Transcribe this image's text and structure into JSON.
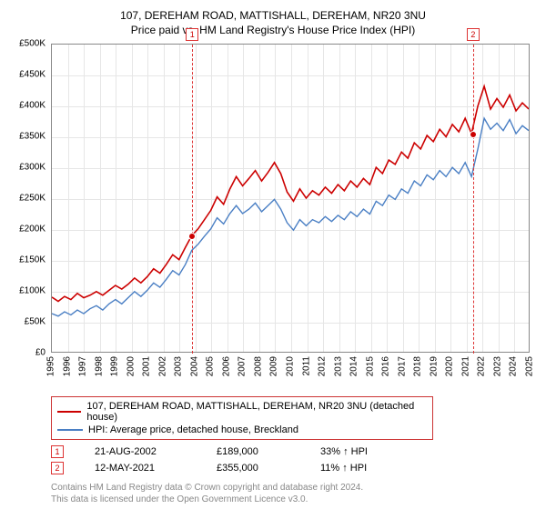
{
  "title": "107, DEREHAM ROAD, MATTISHALL, DEREHAM, NR20 3NU",
  "subtitle": "Price paid vs. HM Land Registry's House Price Index (HPI)",
  "chart": {
    "type": "line",
    "ylim": [
      0,
      500000
    ],
    "ytick_step": 50000,
    "y_ticks": [
      "£0",
      "£50K",
      "£100K",
      "£150K",
      "£200K",
      "£250K",
      "£300K",
      "£350K",
      "£400K",
      "£450K",
      "£500K"
    ],
    "x_ticks": [
      "1995",
      "1996",
      "1997",
      "1998",
      "1999",
      "2000",
      "2001",
      "2002",
      "2003",
      "2004",
      "2005",
      "2006",
      "2007",
      "2008",
      "2009",
      "2010",
      "2011",
      "2012",
      "2013",
      "2014",
      "2015",
      "2016",
      "2017",
      "2018",
      "2019",
      "2020",
      "2021",
      "2022",
      "2023",
      "2024",
      "2025"
    ],
    "background_color": "#ffffff",
    "grid_color": "#e6e6e6",
    "border_color": "#888888",
    "title_fontsize": 12,
    "axis_fontsize": 10,
    "series": [
      {
        "name": "107, DEREHAM ROAD, MATTISHALL, DEREHAM, NR20 3NU (detached house)",
        "color": "#cc0000",
        "line_width": 1.6,
        "y_values": [
          89,
          82,
          90,
          85,
          95,
          88,
          92,
          98,
          92,
          100,
          108,
          102,
          110,
          120,
          112,
          122,
          135,
          128,
          142,
          158,
          150,
          170,
          189,
          200,
          215,
          230,
          252,
          240,
          265,
          285,
          270,
          282,
          295,
          278,
          292,
          308,
          290,
          260,
          245,
          265,
          250,
          262,
          255,
          268,
          258,
          272,
          262,
          278,
          268,
          282,
          272,
          300,
          290,
          312,
          305,
          325,
          315,
          340,
          330,
          352,
          342,
          362,
          350,
          370,
          358,
          380,
          355,
          400,
          432,
          395,
          412,
          398,
          418,
          392,
          405,
          395
        ]
      },
      {
        "name": "HPI: Average price, detached house, Breckland",
        "color": "#4a7fc4",
        "line_width": 1.4,
        "y_values": [
          62,
          58,
          65,
          60,
          68,
          62,
          70,
          75,
          68,
          78,
          85,
          78,
          88,
          98,
          90,
          100,
          112,
          105,
          118,
          132,
          125,
          142,
          165,
          175,
          188,
          200,
          218,
          208,
          225,
          238,
          225,
          232,
          242,
          228,
          238,
          248,
          232,
          210,
          198,
          215,
          205,
          215,
          210,
          220,
          212,
          222,
          215,
          228,
          220,
          232,
          224,
          245,
          238,
          255,
          248,
          265,
          258,
          278,
          270,
          288,
          280,
          295,
          285,
          300,
          290,
          308,
          285,
          330,
          380,
          362,
          372,
          360,
          378,
          355,
          368,
          360
        ]
      }
    ],
    "markers": [
      {
        "id": "1",
        "x_index": 22,
        "y_value": 189,
        "y_value_label": "£189,000"
      },
      {
        "id": "2",
        "x_index": 66,
        "y_value": 355,
        "y_value_label": "£355,000"
      }
    ]
  },
  "legend": {
    "items": [
      {
        "color": "#cc0000",
        "label": "107, DEREHAM ROAD, MATTISHALL, DEREHAM, NR20 3NU (detached house)"
      },
      {
        "color": "#4a7fc4",
        "label": "HPI: Average price, detached house, Breckland"
      }
    ]
  },
  "events": [
    {
      "id": "1",
      "date": "21-AUG-2002",
      "price": "£189,000",
      "pct": "33% ↑ HPI"
    },
    {
      "id": "2",
      "date": "12-MAY-2021",
      "price": "£355,000",
      "pct": "11% ↑ HPI"
    }
  ],
  "footer": {
    "line1": "Contains HM Land Registry data © Crown copyright and database right 2024.",
    "line2": "This data is licensed under the Open Government Licence v3.0."
  }
}
